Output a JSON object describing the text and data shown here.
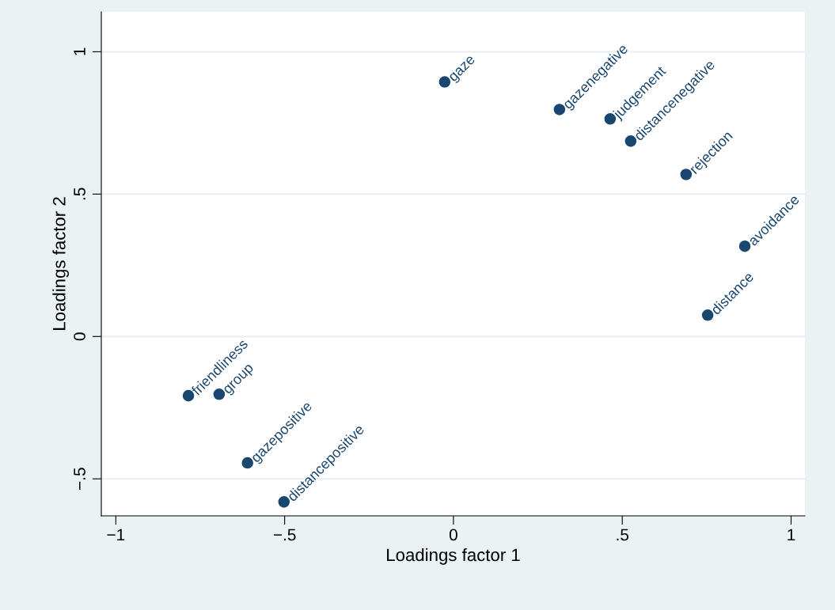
{
  "chart_data": {
    "type": "scatter",
    "xlabel": "Loadings factor 1",
    "ylabel": "Loadings factor 2",
    "x": [
      -0.026,
      0.314,
      0.464,
      0.525,
      0.689,
      0.863,
      0.753,
      -0.785,
      -0.694,
      -0.61,
      -0.502
    ],
    "series": [
      {
        "color": "#1a476f",
        "values": [
          0.894,
          0.797,
          0.764,
          0.686,
          0.569,
          0.317,
          0.075,
          -0.208,
          -0.203,
          -0.444,
          -0.581
        ]
      }
    ],
    "annotations": [
      {
        "text": "gaze",
        "x": -0.026,
        "y": 0.894
      },
      {
        "text": "gazenegative",
        "x": 0.314,
        "y": 0.797
      },
      {
        "text": "judgement",
        "x": 0.464,
        "y": 0.764
      },
      {
        "text": "distancenegative",
        "x": 0.525,
        "y": 0.686
      },
      {
        "text": "rejection",
        "x": 0.689,
        "y": 0.569
      },
      {
        "text": "avoidance",
        "x": 0.863,
        "y": 0.317
      },
      {
        "text": "distance",
        "x": 0.753,
        "y": 0.075
      },
      {
        "text": "friendliness",
        "x": -0.785,
        "y": -0.208
      },
      {
        "text": "group",
        "x": -0.694,
        "y": -0.203
      },
      {
        "text": "gazepositive",
        "x": -0.61,
        "y": -0.444
      },
      {
        "text": "distancepositive",
        "x": -0.502,
        "y": -0.581
      }
    ],
    "xlim": [
      -1.043,
      1.041
    ],
    "ylim": [
      -0.63,
      1.14
    ],
    "xticks": [
      {
        "value": -1,
        "label": "−1"
      },
      {
        "value": -0.5,
        "label": "−.5"
      },
      0,
      {
        "value": 0.5,
        "label": ".5"
      },
      1
    ],
    "yticks": [
      {
        "value": -0.5,
        "label": "−.5"
      },
      0,
      {
        "value": 0.5,
        "label": ".5"
      },
      1
    ],
    "grid": "y",
    "marker": "circle"
  }
}
